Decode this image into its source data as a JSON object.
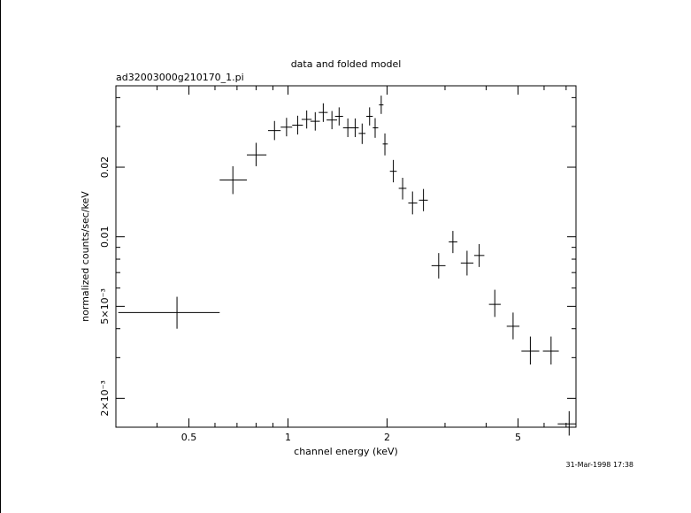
{
  "chart_data": {
    "type": "scatter",
    "title": "data and folded model",
    "subtitle": "ad32003000g210170_1.pi",
    "xlabel": "channel energy (keV)",
    "ylabel": "normalized counts/sec/keV",
    "x_scale": "log",
    "y_scale": "log",
    "xlim": [
      0.3,
      7.5
    ],
    "ylim": [
      0.0015,
      0.045
    ],
    "x_ticks": [
      {
        "value": 0.5,
        "label": "0.5"
      },
      {
        "value": 1,
        "label": "1"
      },
      {
        "value": 2,
        "label": "2"
      },
      {
        "value": 5,
        "label": "5"
      }
    ],
    "y_ticks": [
      {
        "value": 0.002,
        "label": "2×10⁻³"
      },
      {
        "value": 0.005,
        "label": "5×10⁻³"
      },
      {
        "value": 0.01,
        "label": "0.01"
      },
      {
        "value": 0.02,
        "label": "0.02"
      }
    ],
    "grid": false,
    "series": [
      {
        "points": [
          {
            "x": 0.46,
            "xlo": 0.305,
            "xhi": 0.62,
            "y": 0.0047,
            "ylo": 0.004,
            "yhi": 0.0055
          },
          {
            "x": 0.68,
            "xlo": 0.62,
            "xhi": 0.75,
            "y": 0.0176,
            "ylo": 0.0153,
            "yhi": 0.0202
          },
          {
            "x": 0.8,
            "xlo": 0.75,
            "xhi": 0.86,
            "y": 0.0226,
            "ylo": 0.0202,
            "yhi": 0.0255
          },
          {
            "x": 0.91,
            "xlo": 0.87,
            "xhi": 0.95,
            "y": 0.0288,
            "ylo": 0.0262,
            "yhi": 0.0317
          },
          {
            "x": 0.99,
            "xlo": 0.95,
            "xhi": 1.03,
            "y": 0.0298,
            "ylo": 0.0272,
            "yhi": 0.0327
          },
          {
            "x": 1.07,
            "xlo": 1.03,
            "xhi": 1.11,
            "y": 0.0304,
            "ylo": 0.0277,
            "yhi": 0.0334
          },
          {
            "x": 1.14,
            "xlo": 1.1,
            "xhi": 1.18,
            "y": 0.0322,
            "ylo": 0.0294,
            "yhi": 0.0352
          },
          {
            "x": 1.21,
            "xlo": 1.17,
            "xhi": 1.25,
            "y": 0.0316,
            "ylo": 0.0288,
            "yhi": 0.0346
          },
          {
            "x": 1.28,
            "xlo": 1.24,
            "xhi": 1.32,
            "y": 0.0345,
            "ylo": 0.0314,
            "yhi": 0.0378
          },
          {
            "x": 1.36,
            "xlo": 1.31,
            "xhi": 1.41,
            "y": 0.032,
            "ylo": 0.0292,
            "yhi": 0.035
          },
          {
            "x": 1.43,
            "xlo": 1.39,
            "xhi": 1.47,
            "y": 0.0332,
            "ylo": 0.0303,
            "yhi": 0.0363
          },
          {
            "x": 1.52,
            "xlo": 1.47,
            "xhi": 1.57,
            "y": 0.0296,
            "ylo": 0.027,
            "yhi": 0.0325
          },
          {
            "x": 1.6,
            "xlo": 1.56,
            "xhi": 1.64,
            "y": 0.0296,
            "ylo": 0.027,
            "yhi": 0.0325
          },
          {
            "x": 1.68,
            "xlo": 1.64,
            "xhi": 1.72,
            "y": 0.028,
            "ylo": 0.0252,
            "yhi": 0.0309
          },
          {
            "x": 1.77,
            "xlo": 1.73,
            "xhi": 1.81,
            "y": 0.0332,
            "ylo": 0.0303,
            "yhi": 0.0363
          },
          {
            "x": 1.84,
            "xlo": 1.81,
            "xhi": 1.88,
            "y": 0.0296,
            "ylo": 0.0268,
            "yhi": 0.0326
          },
          {
            "x": 1.92,
            "xlo": 1.89,
            "xhi": 1.95,
            "y": 0.0372,
            "ylo": 0.034,
            "yhi": 0.0408
          },
          {
            "x": 1.97,
            "xlo": 1.94,
            "xhi": 2.01,
            "y": 0.0252,
            "ylo": 0.0225,
            "yhi": 0.028
          },
          {
            "x": 2.09,
            "xlo": 2.04,
            "xhi": 2.14,
            "y": 0.0192,
            "ylo": 0.0172,
            "yhi": 0.0215
          },
          {
            "x": 2.23,
            "xlo": 2.17,
            "xhi": 2.29,
            "y": 0.0162,
            "ylo": 0.0145,
            "yhi": 0.018
          },
          {
            "x": 2.39,
            "xlo": 2.32,
            "xhi": 2.47,
            "y": 0.014,
            "ylo": 0.0125,
            "yhi": 0.0157
          },
          {
            "x": 2.58,
            "xlo": 2.5,
            "xhi": 2.66,
            "y": 0.0144,
            "ylo": 0.0129,
            "yhi": 0.0161
          },
          {
            "x": 2.87,
            "xlo": 2.73,
            "xhi": 3.01,
            "y": 0.0075,
            "ylo": 0.0066,
            "yhi": 0.0085
          },
          {
            "x": 3.17,
            "xlo": 3.08,
            "xhi": 3.27,
            "y": 0.0095,
            "ylo": 0.0085,
            "yhi": 0.0106
          },
          {
            "x": 3.5,
            "xlo": 3.35,
            "xhi": 3.66,
            "y": 0.0077,
            "ylo": 0.0068,
            "yhi": 0.0087
          },
          {
            "x": 3.81,
            "xlo": 3.68,
            "xhi": 3.95,
            "y": 0.0083,
            "ylo": 0.0074,
            "yhi": 0.0093
          },
          {
            "x": 4.25,
            "xlo": 4.08,
            "xhi": 4.43,
            "y": 0.0051,
            "ylo": 0.0045,
            "yhi": 0.0059
          },
          {
            "x": 4.83,
            "xlo": 4.62,
            "xhi": 5.05,
            "y": 0.0041,
            "ylo": 0.0036,
            "yhi": 0.0047
          },
          {
            "x": 5.45,
            "xlo": 5.12,
            "xhi": 5.8,
            "y": 0.0032,
            "ylo": 0.0028,
            "yhi": 0.0037
          },
          {
            "x": 6.3,
            "xlo": 5.95,
            "xhi": 6.65,
            "y": 0.0032,
            "ylo": 0.0028,
            "yhi": 0.0037
          },
          {
            "x": 7.15,
            "xlo": 6.6,
            "xhi": 7.5,
            "y": 0.00155,
            "ylo": 0.00138,
            "yhi": 0.00176
          }
        ]
      }
    ]
  },
  "footer": {
    "timestamp": "31-Mar-1998 17:38"
  }
}
